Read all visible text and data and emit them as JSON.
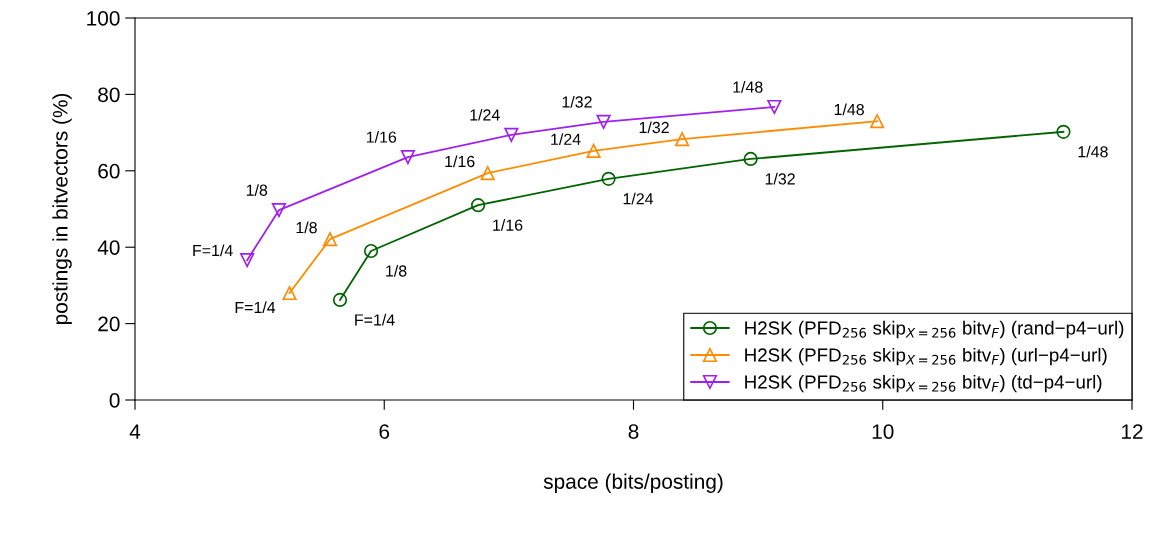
{
  "chart_data": {
    "type": "line",
    "xlabel": "space (bits/posting)",
    "ylabel": "postings in bitvectors (%)",
    "xlim": [
      4,
      12
    ],
    "xticks": [
      4,
      6,
      8,
      10,
      12
    ],
    "ylim": [
      0,
      100
    ],
    "yticks": [
      0,
      20,
      40,
      60,
      80,
      100
    ],
    "grid": false,
    "legend": "bottom right",
    "series": [
      {
        "name": "H2SK (PFD$_{256}$ skip$_{X=256}$ bitv$_{F}$) (rand−p4−url)",
        "color": "#006400",
        "marker": "circle",
        "x": [
          5.645,
          5.894,
          6.753,
          7.8,
          8.94,
          11.45
        ],
        "values": [
          26.2,
          39.0,
          51.0,
          57.9,
          63.1,
          70.2
        ]
      },
      {
        "name": "H2SK (PFD$_{256}$ skip$_{X=256}$ bitv$_{F}$) (url−p4−url)",
        "color": "#ff8c00",
        "marker": "triangle",
        "x": [
          5.24,
          5.565,
          6.83,
          7.68,
          8.39,
          9.955
        ],
        "values": [
          28.0,
          42.1,
          59.4,
          65.2,
          68.3,
          73.0
        ]
      },
      {
        "name": "H2SK (PFD$_{256}$ skip$_{X=256}$ bitv$_{F}$) (td−p4−url)",
        "color": "#a020f0",
        "marker": "triangle_down",
        "x": [
          4.9,
          5.155,
          6.19,
          7.02,
          7.76,
          9.13
        ],
        "values": [
          36.6,
          49.7,
          63.6,
          69.4,
          72.8,
          76.7
        ]
      }
    ],
    "annotations": [
      {
        "text": "F=1/4",
        "x": 5.645,
        "y": 26.2
      },
      {
        "text": "1/8",
        "x": 5.894,
        "y": 39.0
      },
      {
        "text": "1/16",
        "x": 6.753,
        "y": 51.0
      },
      {
        "text": "1/24",
        "x": 7.8,
        "y": 57.9
      },
      {
        "text": "1/32",
        "x": 8.94,
        "y": 63.1
      },
      {
        "text": "1/48",
        "x": 11.45,
        "y": 70.2
      },
      {
        "text": "F=1/4",
        "x": 5.24,
        "y": 28.0
      },
      {
        "text": "1/8",
        "x": 5.565,
        "y": 42.1
      },
      {
        "text": "1/16",
        "x": 6.83,
        "y": 59.4
      },
      {
        "text": "1/24",
        "x": 7.68,
        "y": 65.2
      },
      {
        "text": "1/32",
        "x": 8.39,
        "y": 68.3
      },
      {
        "text": "1/48",
        "x": 9.955,
        "y": 73.0
      },
      {
        "text": "F=1/4",
        "x": 4.9,
        "y": 36.6
      },
      {
        "text": "1/8",
        "x": 5.155,
        "y": 49.7
      },
      {
        "text": "1/16",
        "x": 6.19,
        "y": 63.6
      },
      {
        "text": "1/24",
        "x": 7.02,
        "y": 69.4
      },
      {
        "text": "1/32",
        "x": 7.76,
        "y": 72.8
      },
      {
        "text": "1/48",
        "x": 9.13,
        "y": 76.7
      }
    ]
  }
}
